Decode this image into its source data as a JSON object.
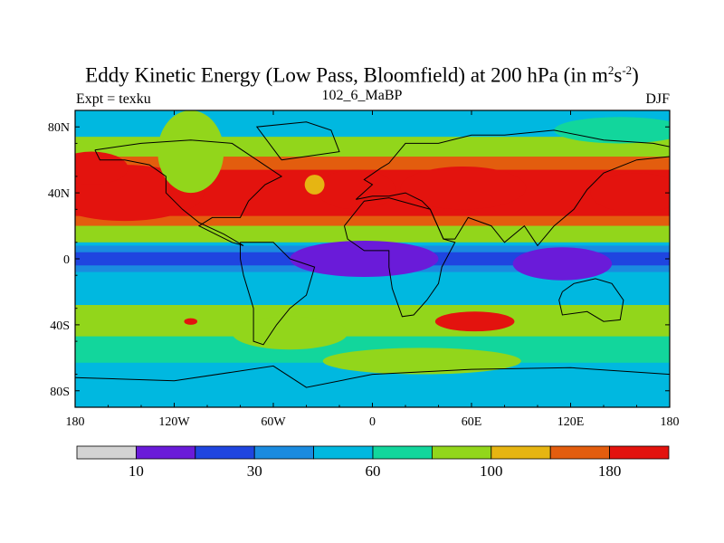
{
  "title": {
    "main": "Eddy Kinetic Energy (Low Pass, Bloomfield) at 200 hPa (in m",
    "sup1": "2",
    "mid": "s",
    "sup2": "-2",
    "end": ")"
  },
  "subtitles": {
    "left": "Expt = texku",
    "center": "102_6_MaBP",
    "right": "DJF"
  },
  "chart_data": {
    "type": "heatmap",
    "projection": "cylindrical equidistant",
    "variable": "Eddy Kinetic Energy",
    "level": "200 hPa",
    "season": "DJF",
    "xlim": [
      -180,
      180
    ],
    "ylim": [
      -90,
      90
    ],
    "x_ticks": [
      {
        "value": -180,
        "label": "180"
      },
      {
        "value": -120,
        "label": "120W"
      },
      {
        "value": -60,
        "label": "60W"
      },
      {
        "value": 0,
        "label": "0"
      },
      {
        "value": 60,
        "label": "60E"
      },
      {
        "value": 120,
        "label": "120E"
      },
      {
        "value": 180,
        "label": "180"
      }
    ],
    "y_ticks": [
      {
        "value": 80,
        "label": "80N"
      },
      {
        "value": 40,
        "label": "40N"
      },
      {
        "value": 0,
        "label": "0"
      },
      {
        "value": -40,
        "label": "40S"
      },
      {
        "value": -80,
        "label": "80S"
      }
    ],
    "colorbar": {
      "colors": [
        "#d3d3d3",
        "#6a1bd9",
        "#1f45e0",
        "#1a8be0",
        "#00b8e0",
        "#12d69c",
        "#92d61b",
        "#e6b512",
        "#e35d0e",
        "#e3130e"
      ],
      "labels": [
        {
          "boundary": 1,
          "text": "10"
        },
        {
          "boundary": 3,
          "text": "30"
        },
        {
          "boundary": 5,
          "text": "60"
        },
        {
          "boundary": 7,
          "text": "100"
        },
        {
          "boundary": 9,
          "text": "180"
        }
      ]
    },
    "field": {
      "background_level": 4,
      "features": [
        {
          "lon": -150,
          "lat": 40,
          "rlon": 48,
          "rlat": 17,
          "level": 9
        },
        {
          "lon": -170,
          "lat": 55,
          "rlon": 22,
          "rlat": 10,
          "level": 9
        },
        {
          "lon": -10,
          "lat": 42,
          "rlon": 24,
          "rlat": 12,
          "level": 9
        },
        {
          "lon": 55,
          "lat": 43,
          "rlon": 38,
          "rlat": 13,
          "level": 9
        },
        {
          "lon": 160,
          "lat": 40,
          "rlon": 28,
          "rlat": 12,
          "level": 9
        },
        {
          "lon": 62,
          "lat": -38,
          "rlon": 24,
          "rlat": 6,
          "level": 9
        },
        {
          "lon": -110,
          "lat": -38,
          "rlon": 4,
          "rlat": 2,
          "level": 9
        },
        {
          "lon": -5,
          "lat": 0,
          "rlon": 25,
          "rlat": 5,
          "level": 0
        },
        {
          "lon": -5,
          "lat": 0,
          "rlon": 45,
          "rlat": 11,
          "level": 1
        },
        {
          "lon": 115,
          "lat": -3,
          "rlon": 30,
          "rlat": 10,
          "level": 1
        },
        {
          "lon": -110,
          "lat": 65,
          "rlon": 20,
          "rlat": 25,
          "level": 6
        },
        {
          "lon": -35,
          "lat": 45,
          "rlon": 6,
          "rlat": 6,
          "level": 7
        },
        {
          "lon": 30,
          "lat": -62,
          "rlon": 60,
          "rlat": 8,
          "level": 6
        },
        {
          "lon": -50,
          "lat": -45,
          "rlon": 35,
          "rlat": 10,
          "level": 6
        },
        {
          "lon": 150,
          "lat": 78,
          "rlon": 40,
          "rlat": 8,
          "level": 5
        }
      ]
    }
  }
}
